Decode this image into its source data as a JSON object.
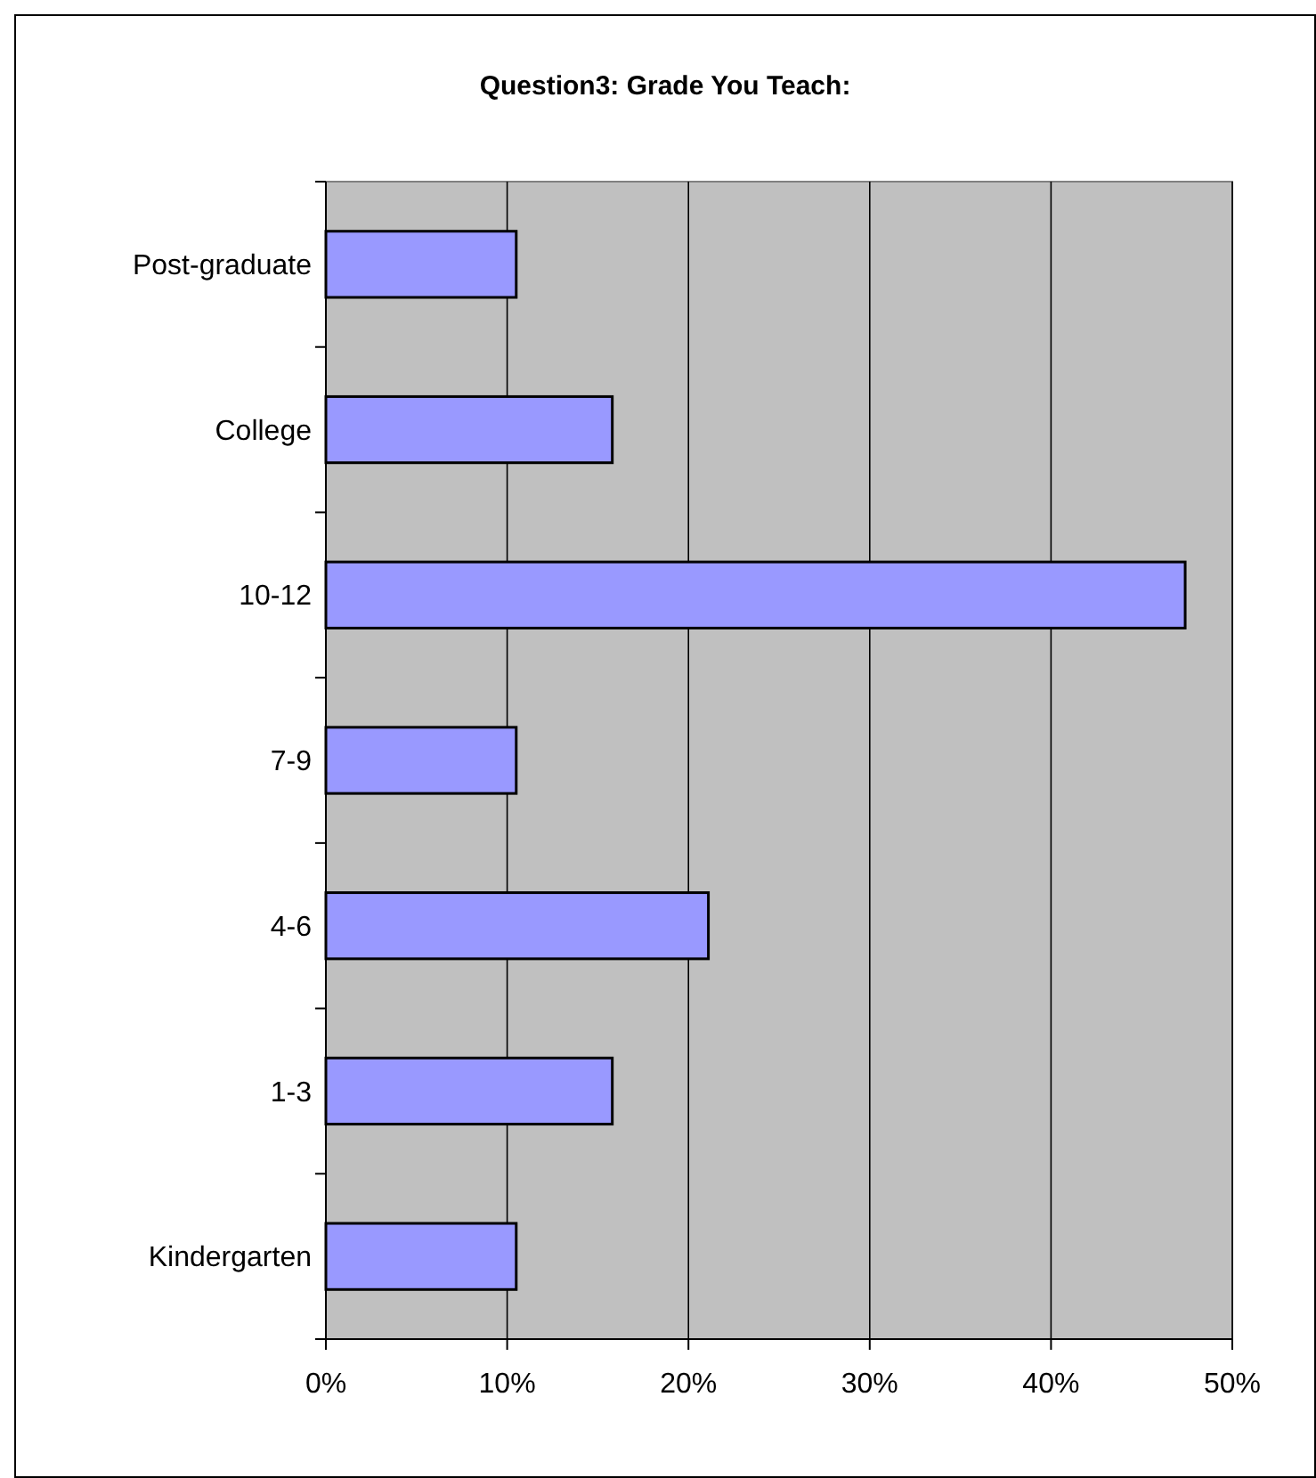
{
  "chart_data": {
    "type": "bar",
    "orientation": "horizontal",
    "title": "Question3: Grade You Teach:",
    "categories": [
      "Post-graduate",
      "College",
      "10-12",
      "7-9",
      "4-6",
      "1-3",
      "Kindergarten"
    ],
    "values": [
      10.5,
      15.8,
      47.4,
      10.5,
      21.1,
      15.8,
      10.5
    ],
    "color": "#9999ff",
    "xlim": [
      0,
      50
    ],
    "xticks": [
      {
        "value": 0,
        "label": "0%"
      },
      {
        "value": 10,
        "label": "10%"
      },
      {
        "value": 20,
        "label": "20%"
      },
      {
        "value": 30,
        "label": "30%"
      },
      {
        "value": 40,
        "label": "40%"
      },
      {
        "value": 50,
        "label": "50%"
      }
    ],
    "grid": "x"
  }
}
